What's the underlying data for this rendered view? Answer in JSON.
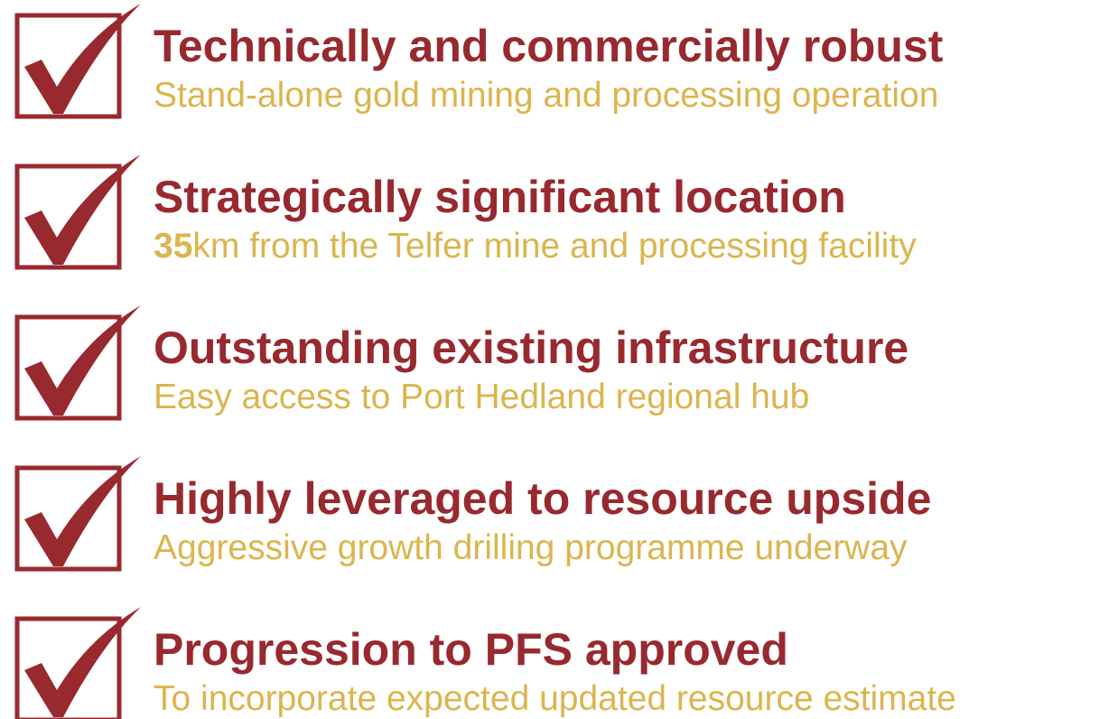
{
  "items": [
    {
      "heading": "Technically and commercially robust",
      "subtitle": "Stand-alone gold mining and processing operation"
    },
    {
      "heading": "Strategically significant location",
      "subtitle_emphasis": "35",
      "subtitle": "km from the Telfer mine and processing facility"
    },
    {
      "heading": "Outstanding existing infrastructure",
      "subtitle": "Easy access to Port Hedland regional hub"
    },
    {
      "heading": "Highly leveraged to resource upside",
      "subtitle": "Aggressive growth drilling programme underway"
    },
    {
      "heading": "Progression to PFS approved",
      "subtitle": "To incorporate expected updated resource estimate"
    }
  ]
}
